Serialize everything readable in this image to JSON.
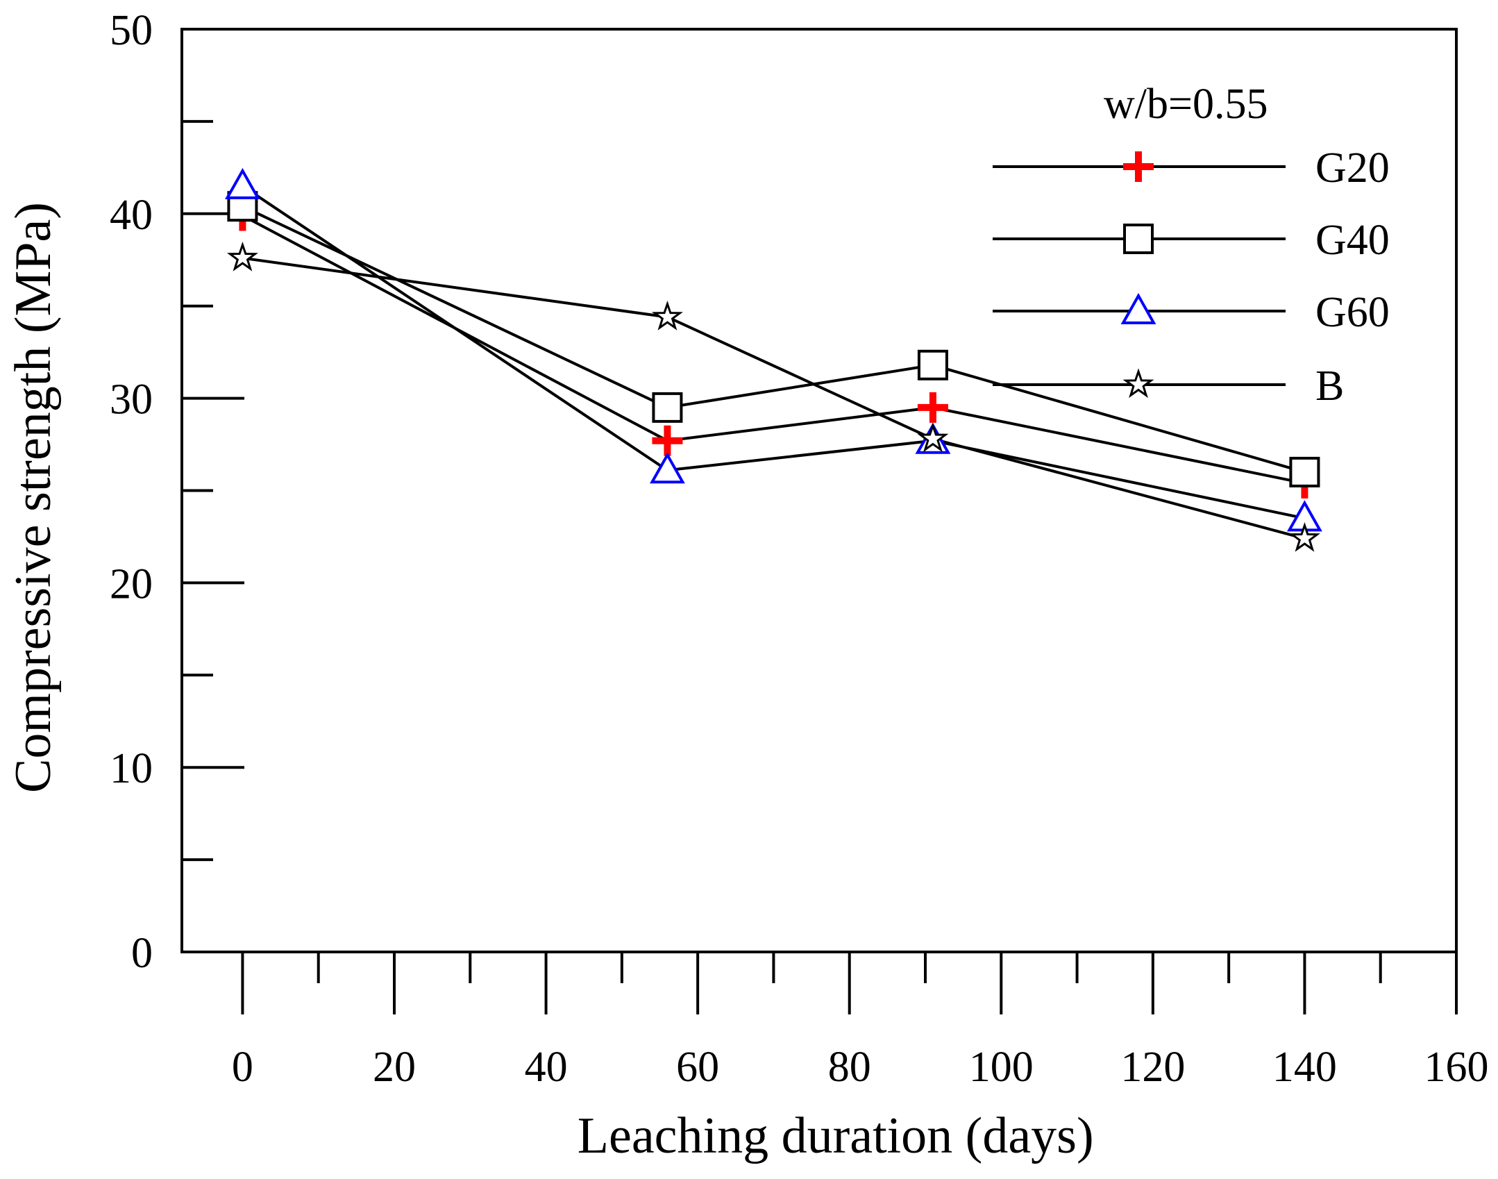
{
  "chart_data": {
    "type": "line",
    "title": "",
    "xlabel": "Leaching duration (days)",
    "ylabel": "Compressive strength (MPa)",
    "xlim": [
      -8,
      160
    ],
    "ylim": [
      0,
      50
    ],
    "x_major_ticks": [
      0,
      20,
      40,
      60,
      80,
      100,
      120,
      140,
      160
    ],
    "x_minor_ticks": [
      10,
      30,
      50,
      70,
      90,
      110,
      130,
      150
    ],
    "y_major_ticks": [
      0,
      10,
      20,
      30,
      40,
      50
    ],
    "y_minor_ticks": [
      5,
      15,
      25,
      35,
      45
    ],
    "x_tick_labels": [
      "0",
      "20",
      "40",
      "60",
      "80",
      "100",
      "120",
      "140",
      "160"
    ],
    "y_tick_labels": [
      "0",
      "10",
      "20",
      "30",
      "40",
      "50"
    ],
    "grid": false,
    "legend": {
      "title": "w/b=0.55",
      "position": "top-right"
    },
    "series": [
      {
        "name": "G20",
        "marker": "plus",
        "color": "#ff0000",
        "x": [
          0,
          56,
          91,
          140
        ],
        "y": [
          39.9,
          27.7,
          29.5,
          25.4
        ]
      },
      {
        "name": "G40",
        "marker": "square",
        "color": "#000000",
        "x": [
          0,
          56,
          91,
          140
        ],
        "y": [
          40.4,
          29.5,
          31.8,
          26.0
        ]
      },
      {
        "name": "G60",
        "marker": "triangle",
        "color": "#0000ff",
        "x": [
          0,
          56,
          91,
          140
        ],
        "y": [
          41.5,
          26.1,
          27.7,
          23.5
        ]
      },
      {
        "name": "B",
        "marker": "star",
        "color": "#000000",
        "x": [
          0,
          56,
          91,
          140
        ],
        "y": [
          37.6,
          34.4,
          27.8,
          22.4
        ]
      }
    ]
  }
}
